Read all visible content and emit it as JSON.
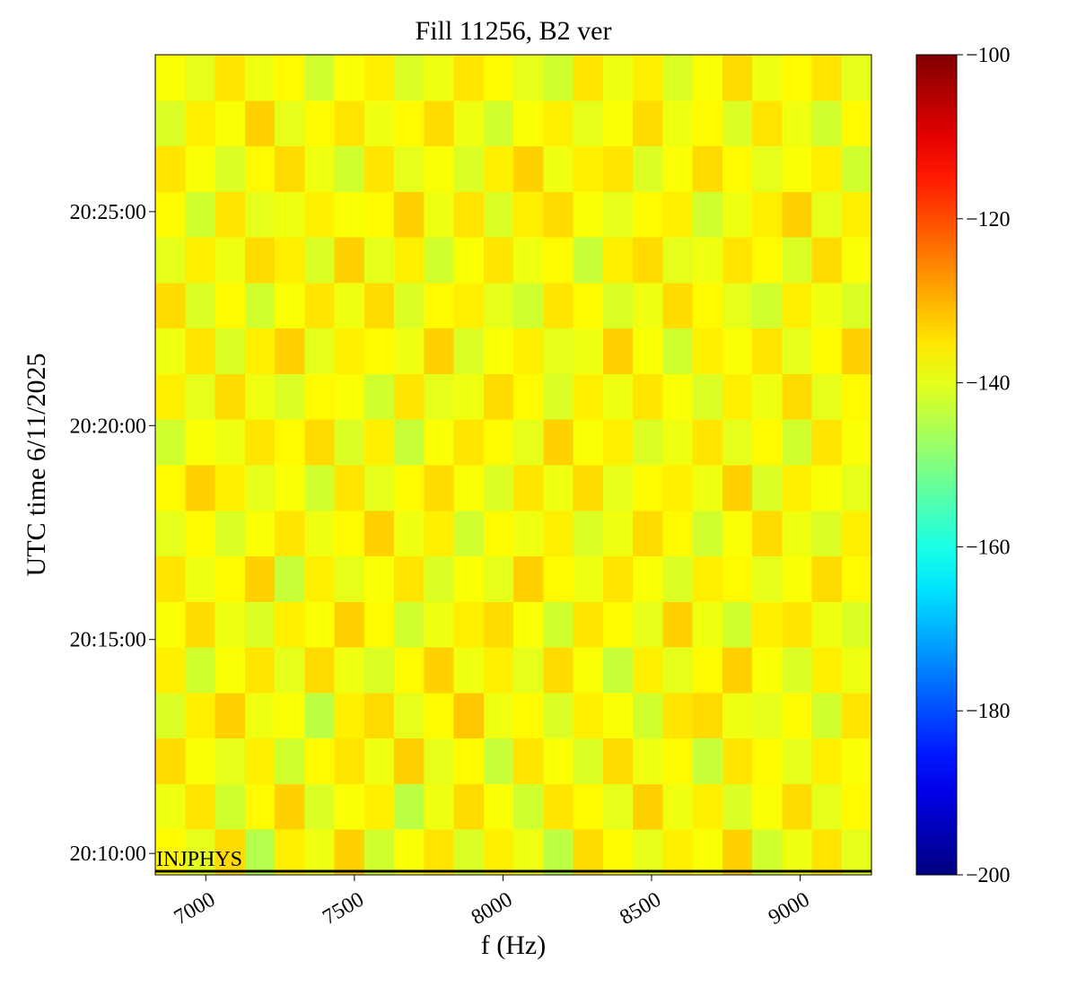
{
  "chart_data": {
    "type": "heatmap",
    "title": "Fill 11256, B2 ver",
    "xlabel": "f (Hz)",
    "ylabel": "UTC time 6/11/2025",
    "colormap": "jet",
    "xlim": [
      6830,
      9240
    ],
    "xticks": [
      7000,
      7500,
      8000,
      8500,
      9000
    ],
    "ylim": [
      "20:09:30",
      "20:28:40"
    ],
    "yticks": [
      "20:10:00",
      "20:15:00",
      "20:20:00",
      "20:25:00"
    ],
    "zlim": [
      -200,
      -100
    ],
    "zticks": [
      {
        "value": -200,
        "label": "−200"
      },
      {
        "value": -180,
        "label": "−180"
      },
      {
        "value": -160,
        "label": "−160"
      },
      {
        "value": -140,
        "label": "−140"
      },
      {
        "value": -120,
        "label": "−120"
      },
      {
        "value": -100,
        "label": "−100"
      }
    ],
    "annotations": [
      {
        "text": "INJPHYS",
        "time": "20:09:35"
      }
    ],
    "z": [
      [
        -137,
        -140,
        -134,
        -145,
        -136,
        -139,
        -133,
        -142,
        -138,
        -135,
        -141,
        -136,
        -139,
        -144,
        -134,
        -137,
        -140,
        -136,
        -138,
        -133,
        -142,
        -139,
        -135,
        -140
      ],
      [
        -139,
        -135,
        -142,
        -137,
        -133,
        -141,
        -138,
        -136,
        -144,
        -139,
        -134,
        -138,
        -142,
        -135,
        -137,
        -140,
        -133,
        -139,
        -136,
        -141,
        -138,
        -134,
        -140,
        -137
      ],
      [
        -134,
        -138,
        -140,
        -136,
        -142,
        -137,
        -135,
        -139,
        -133,
        -140,
        -137,
        -143,
        -135,
        -138,
        -141,
        -134,
        -139,
        -137,
        -143,
        -135,
        -137,
        -140,
        -136,
        -138
      ],
      [
        -141,
        -136,
        -133,
        -139,
        -138,
        -144,
        -136,
        -134,
        -140,
        -137,
        -132,
        -139,
        -137,
        -141,
        -136,
        -138,
        -142,
        -135,
        -134,
        -139,
        -140,
        -137,
        -142,
        -135
      ],
      [
        -136,
        -142,
        -138,
        -135,
        -140,
        -134,
        -139,
        -141,
        -137,
        -133,
        -139,
        -136,
        -140,
        -134,
        -138,
        -143,
        -136,
        -140,
        -137,
        -133,
        -138,
        -141,
        -136,
        -139
      ],
      [
        -138,
        -134,
        -139,
        -141,
        -136,
        -138,
        -133,
        -137,
        -142,
        -139,
        -136,
        -134,
        -138,
        -142,
        -135,
        -137,
        -140,
        -133,
        -139,
        -142,
        -136,
        -135,
        -139,
        -141
      ],
      [
        -135,
        -139,
        -137,
        -133,
        -143,
        -136,
        -140,
        -138,
        -135,
        -141,
        -138,
        -140,
        -133,
        -137,
        -139,
        -135,
        -138,
        -141,
        -136,
        -137,
        -140,
        -138,
        -134,
        -137
      ],
      [
        -140,
        -137,
        -141,
        -138,
        -135,
        -139,
        -137,
        -133,
        -139,
        -136,
        -142,
        -137,
        -139,
        -136,
        -141,
        -139,
        -134,
        -137,
        -142,
        -138,
        -134,
        -139,
        -141,
        -136
      ],
      [
        -137,
        -133,
        -136,
        -140,
        -138,
        -142,
        -135,
        -140,
        -137,
        -134,
        -138,
        -141,
        -135,
        -139,
        -134,
        -140,
        -137,
        -136,
        -139,
        -133,
        -141,
        -136,
        -138,
        -140
      ],
      [
        -142,
        -138,
        -139,
        -135,
        -137,
        -134,
        -141,
        -136,
        -143,
        -138,
        -135,
        -137,
        -140,
        -133,
        -138,
        -136,
        -141,
        -139,
        -135,
        -140,
        -137,
        -142,
        -135,
        -138
      ],
      [
        -136,
        -140,
        -134,
        -139,
        -141,
        -137,
        -138,
        -142,
        -135,
        -140,
        -139,
        -134,
        -137,
        -141,
        -136,
        -139,
        -135,
        -138,
        -141,
        -136,
        -139,
        -134,
        -140,
        -137
      ],
      [
        -139,
        -135,
        -141,
        -136,
        -133,
        -140,
        -136,
        -137,
        -139,
        -133,
        -141,
        -138,
        -136,
        -140,
        -139,
        -133,
        -138,
        -142,
        -136,
        -138,
        -135,
        -140,
        -137,
        -133
      ],
      [
        -134,
        -141,
        -137,
        -142,
        -138,
        -135,
        -139,
        -134,
        -141,
        -137,
        -136,
        -140,
        -142,
        -135,
        -137,
        -141,
        -139,
        -134,
        -137,
        -140,
        -142,
        -136,
        -139,
        -141
      ],
      [
        -140,
        -136,
        -139,
        -134,
        -136,
        -141,
        -133,
        -140,
        -136,
        -142,
        -138,
        -135,
        -139,
        -137,
        -143,
        -136,
        -134,
        -140,
        -139,
        -135,
        -137,
        -141,
        -134,
        -138
      ],
      [
        -137,
        -142,
        -135,
        -140,
        -139,
        -136,
        -138,
        -137,
        -133,
        -139,
        -135,
        -141,
        -136,
        -134,
        -138,
        -140,
        -137,
        -136,
        -142,
        -139,
        -136,
        -133,
        -140,
        -136
      ],
      [
        -135,
        -138,
        -141,
        -137,
        -134,
        -139,
        -142,
        -135,
        -140,
        -138,
        -141,
        -136,
        -133,
        -139,
        -136,
        -135,
        -141,
        -138,
        -134,
        -137,
        -140,
        -138,
        -136,
        -142
      ],
      [
        -141,
        -136,
        -138,
        -133,
        -140,
        -137,
        -135,
        -139,
        -137,
        -134,
        -139,
        -142,
        -138,
        -136,
        -140,
        -138,
        -134,
        -139,
        -137,
        -141,
        -135,
        -139,
        -142,
        -137
      ],
      [
        -138,
        -140,
        -135,
        -139,
        -137,
        -142,
        -138,
        -136,
        -141,
        -139,
        -135,
        -137,
        -140,
        -142,
        -135,
        -139,
        -136,
        -141,
        -138,
        -134,
        -139,
        -137,
        -135,
        -140
      ]
    ]
  }
}
